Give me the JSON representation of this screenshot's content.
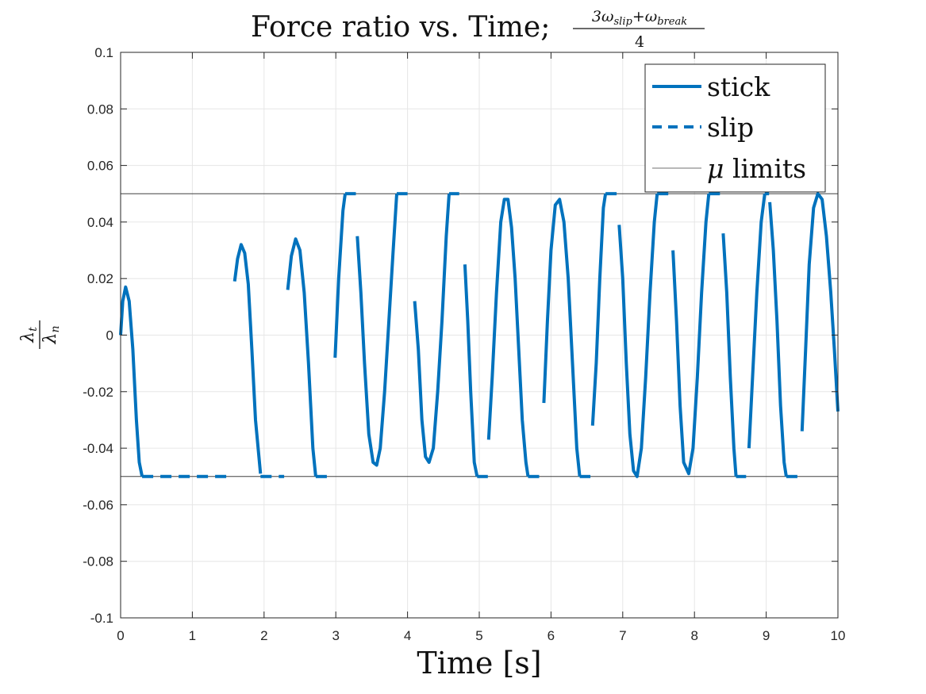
{
  "chart_data": {
    "type": "line",
    "title_main": "Force ratio vs. Time;",
    "title_fraction": {
      "numerator": [
        "3ω",
        "slip",
        "+ω",
        "break"
      ],
      "denominator": "4"
    },
    "xlabel": "Time [s]",
    "ylabel": {
      "numerator": [
        "λ",
        "t"
      ],
      "denominator": [
        "λ",
        "n"
      ]
    },
    "xlim": [
      0,
      10
    ],
    "ylim": [
      -0.1,
      0.1
    ],
    "xticks": [
      0,
      1,
      2,
      3,
      4,
      5,
      6,
      7,
      8,
      9,
      10
    ],
    "xtick_labels": [
      "0",
      "1",
      "2",
      "3",
      "4",
      "5",
      "6",
      "7",
      "8",
      "9",
      "10"
    ],
    "yticks": [
      -0.1,
      -0.08,
      -0.06,
      -0.04,
      -0.02,
      0,
      0.02,
      0.04,
      0.06,
      0.08,
      0.1
    ],
    "ytick_labels": [
      "-0.1",
      "-0.08",
      "-0.06",
      "-0.04",
      "-0.02",
      "0",
      "0.02",
      "0.04",
      "0.06",
      "0.08",
      "0.1"
    ],
    "grid": true,
    "legend_position": "top-right",
    "legend": [
      {
        "label": "stick",
        "style": "solid"
      },
      {
        "label": "slip",
        "style": "dashed"
      },
      {
        "label_prefix": "μ",
        "label": " limits",
        "style": "thin"
      }
    ],
    "colors": {
      "series": "#0072BD",
      "limits": "#404040",
      "grid": "#e6e6e6",
      "axis": "#262626"
    },
    "limits": [
      0.05,
      -0.05
    ],
    "series": [
      {
        "name": "stick",
        "style": "solid",
        "segments": [
          [
            [
              0,
              0
            ],
            [
              0.03,
              0.012
            ],
            [
              0.07,
              0.017
            ],
            [
              0.12,
              0.012
            ],
            [
              0.17,
              -0.005
            ],
            [
              0.22,
              -0.03
            ],
            [
              0.26,
              -0.045
            ],
            [
              0.3,
              -0.05
            ]
          ],
          [
            [
              1.59,
              0.019
            ],
            [
              1.63,
              0.027
            ],
            [
              1.68,
              0.032
            ],
            [
              1.73,
              0.029
            ],
            [
              1.78,
              0.018
            ],
            [
              1.83,
              -0.005
            ],
            [
              1.88,
              -0.03
            ],
            [
              1.95,
              -0.049
            ]
          ],
          [
            [
              2.33,
              0.016
            ],
            [
              2.38,
              0.028
            ],
            [
              2.44,
              0.034
            ],
            [
              2.5,
              0.03
            ],
            [
              2.56,
              0.015
            ],
            [
              2.62,
              -0.01
            ],
            [
              2.68,
              -0.04
            ],
            [
              2.72,
              -0.05
            ]
          ],
          [
            [
              2.99,
              -0.008
            ],
            [
              3.04,
              0.02
            ],
            [
              3.1,
              0.044
            ],
            [
              3.13,
              0.05
            ]
          ],
          [
            [
              3.3,
              0.035
            ],
            [
              3.35,
              0.015
            ],
            [
              3.4,
              -0.01
            ],
            [
              3.46,
              -0.035
            ],
            [
              3.52,
              -0.045
            ],
            [
              3.57,
              -0.046
            ],
            [
              3.62,
              -0.04
            ],
            [
              3.68,
              -0.02
            ],
            [
              3.74,
              0.005
            ],
            [
              3.8,
              0.03
            ],
            [
              3.85,
              0.05
            ]
          ],
          [
            [
              4.1,
              0.012
            ],
            [
              4.15,
              -0.005
            ],
            [
              4.2,
              -0.03
            ],
            [
              4.25,
              -0.043
            ],
            [
              4.3,
              -0.045
            ],
            [
              4.36,
              -0.04
            ],
            [
              4.42,
              -0.02
            ],
            [
              4.48,
              0.005
            ],
            [
              4.54,
              0.035
            ],
            [
              4.58,
              0.05
            ]
          ],
          [
            [
              4.8,
              0.025
            ],
            [
              4.84,
              0.005
            ],
            [
              4.88,
              -0.02
            ],
            [
              4.93,
              -0.045
            ],
            [
              4.97,
              -0.05
            ]
          ],
          [
            [
              5.13,
              -0.037
            ],
            [
              5.18,
              -0.015
            ],
            [
              5.24,
              0.015
            ],
            [
              5.3,
              0.04
            ],
            [
              5.35,
              0.048
            ],
            [
              5.4,
              0.048
            ],
            [
              5.45,
              0.038
            ],
            [
              5.5,
              0.02
            ],
            [
              5.55,
              -0.005
            ],
            [
              5.6,
              -0.03
            ],
            [
              5.65,
              -0.045
            ],
            [
              5.68,
              -0.05
            ]
          ],
          [
            [
              5.9,
              -0.024
            ],
            [
              5.95,
              0.005
            ],
            [
              6.0,
              0.03
            ],
            [
              6.06,
              0.046
            ],
            [
              6.12,
              0.048
            ],
            [
              6.18,
              0.04
            ],
            [
              6.24,
              0.02
            ],
            [
              6.3,
              -0.01
            ],
            [
              6.36,
              -0.04
            ],
            [
              6.4,
              -0.05
            ]
          ],
          [
            [
              6.58,
              -0.032
            ],
            [
              6.63,
              -0.01
            ],
            [
              6.68,
              0.02
            ],
            [
              6.73,
              0.045
            ],
            [
              6.76,
              0.05
            ]
          ],
          [
            [
              6.95,
              0.039
            ],
            [
              7.0,
              0.02
            ],
            [
              7.05,
              -0.01
            ],
            [
              7.1,
              -0.035
            ],
            [
              7.15,
              -0.048
            ],
            [
              7.2,
              -0.05
            ],
            [
              7.26,
              -0.04
            ],
            [
              7.32,
              -0.015
            ],
            [
              7.38,
              0.015
            ],
            [
              7.44,
              0.04
            ],
            [
              7.48,
              0.05
            ]
          ],
          [
            [
              7.7,
              0.03
            ],
            [
              7.75,
              0.005
            ],
            [
              7.8,
              -0.025
            ],
            [
              7.85,
              -0.045
            ],
            [
              7.92,
              -0.049
            ],
            [
              7.98,
              -0.04
            ],
            [
              8.04,
              -0.015
            ],
            [
              8.1,
              0.015
            ],
            [
              8.16,
              0.04
            ],
            [
              8.2,
              0.05
            ]
          ],
          [
            [
              8.4,
              0.036
            ],
            [
              8.45,
              0.015
            ],
            [
              8.5,
              -0.015
            ],
            [
              8.55,
              -0.04
            ],
            [
              8.58,
              -0.05
            ]
          ],
          [
            [
              8.76,
              -0.04
            ],
            [
              8.81,
              -0.015
            ],
            [
              8.87,
              0.015
            ],
            [
              8.93,
              0.04
            ],
            [
              8.98,
              0.05
            ]
          ],
          [
            [
              9.05,
              0.047
            ],
            [
              9.1,
              0.03
            ],
            [
              9.15,
              0.005
            ],
            [
              9.2,
              -0.025
            ],
            [
              9.25,
              -0.045
            ],
            [
              9.28,
              -0.05
            ]
          ],
          [
            [
              9.5,
              -0.034
            ],
            [
              9.55,
              -0.005
            ],
            [
              9.6,
              0.025
            ],
            [
              9.66,
              0.045
            ],
            [
              9.72,
              0.05
            ],
            [
              9.78,
              0.048
            ],
            [
              9.84,
              0.035
            ],
            [
              9.9,
              0.015
            ],
            [
              9.95,
              -0.005
            ],
            [
              10.0,
              -0.027
            ]
          ]
        ]
      },
      {
        "name": "slip",
        "style": "dashed",
        "segments": [
          [
            [
              0.3,
              -0.05
            ],
            [
              1.52,
              -0.05
            ]
          ],
          [
            [
              1.95,
              -0.05
            ],
            [
              2.28,
              -0.05
            ]
          ],
          [
            [
              2.72,
              -0.05
            ],
            [
              2.88,
              -0.05
            ]
          ],
          [
            [
              3.13,
              0.05
            ],
            [
              3.28,
              0.05
            ]
          ],
          [
            [
              3.85,
              0.05
            ],
            [
              4.0,
              0.05
            ]
          ],
          [
            [
              4.58,
              0.05
            ],
            [
              4.72,
              0.05
            ]
          ],
          [
            [
              4.97,
              -0.05
            ],
            [
              5.12,
              -0.05
            ]
          ],
          [
            [
              5.68,
              -0.05
            ],
            [
              5.85,
              -0.05
            ]
          ],
          [
            [
              6.4,
              -0.05
            ],
            [
              6.55,
              -0.05
            ]
          ],
          [
            [
              6.76,
              0.05
            ],
            [
              6.92,
              0.05
            ]
          ],
          [
            [
              7.48,
              0.05
            ],
            [
              7.65,
              0.05
            ]
          ],
          [
            [
              8.2,
              0.05
            ],
            [
              8.36,
              0.05
            ]
          ],
          [
            [
              8.58,
              -0.05
            ],
            [
              8.72,
              -0.05
            ]
          ],
          [
            [
              8.98,
              0.05
            ],
            [
              9.04,
              0.05
            ]
          ],
          [
            [
              9.28,
              -0.05
            ],
            [
              9.48,
              -0.05
            ]
          ]
        ]
      }
    ]
  }
}
